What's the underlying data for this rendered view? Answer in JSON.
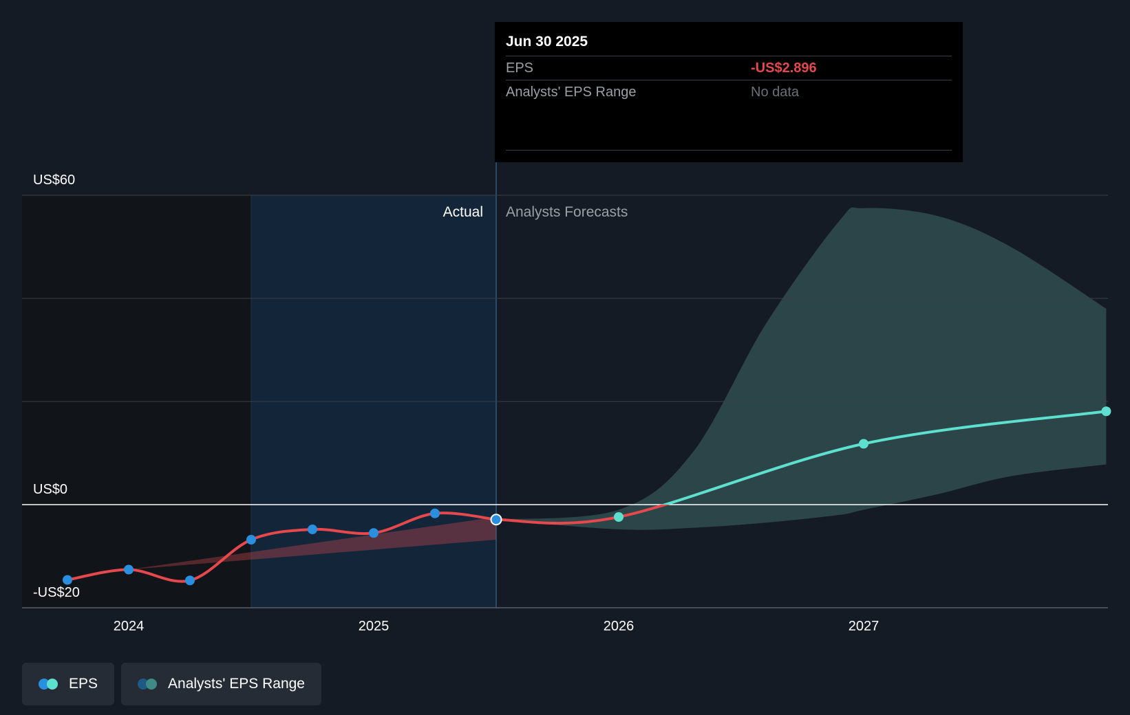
{
  "chart_data": {
    "type": "line",
    "title": "EPS",
    "y_unit_labels": [
      "US$60",
      "US$0",
      "-US$20"
    ],
    "ylim": [
      -20,
      60
    ],
    "xlim": [
      2023.6,
      2027.99
    ],
    "x_ticks": [
      {
        "value": 2024.0,
        "label": "2024"
      },
      {
        "value": 2025.0,
        "label": "2025"
      },
      {
        "value": 2026.0,
        "label": "2026"
      },
      {
        "value": 2027.0,
        "label": "2027"
      }
    ],
    "actual_label": "Actual",
    "forecast_label": "Analysts Forecasts",
    "actual_region_start": 2024.5,
    "forecast_start": 2025.5,
    "series": [
      {
        "name": "EPS (actual)",
        "color": "#e5484d",
        "marker_color": "#2b8fe0",
        "points": [
          {
            "x": 2023.75,
            "y": -14.6
          },
          {
            "x": 2024.0,
            "y": -12.6
          },
          {
            "x": 2024.25,
            "y": -14.7
          },
          {
            "x": 2024.5,
            "y": -6.8
          },
          {
            "x": 2024.75,
            "y": -4.8
          },
          {
            "x": 2025.0,
            "y": -5.5
          },
          {
            "x": 2025.25,
            "y": -1.7
          },
          {
            "x": 2025.5,
            "y": -2.896
          }
        ]
      },
      {
        "name": "EPS (forecast)",
        "color": "#5ee0cf",
        "marker_color": "#5ee0cf",
        "points": [
          {
            "x": 2025.5,
            "y": -2.896
          },
          {
            "x": 2026.0,
            "y": -2.4
          },
          {
            "x": 2027.0,
            "y": 11.8
          },
          {
            "x": 2027.99,
            "y": 18.1
          }
        ]
      }
    ],
    "actual_range_band": {
      "x": [
        2024.0,
        2025.5
      ],
      "low": [
        -12.6,
        -6.8
      ],
      "high": [
        -12.6,
        -2.4
      ]
    },
    "forecast_range_band": {
      "x": [
        2025.5,
        2026.0,
        2026.3,
        2026.6,
        2026.9,
        2027.0,
        2027.3,
        2027.6,
        2027.99
      ],
      "high": [
        -2.9,
        -1.0,
        10.0,
        35.0,
        55.0,
        57.5,
        56.0,
        50.0,
        38.0
      ],
      "low": [
        -2.9,
        -4.8,
        -4.5,
        -3.5,
        -2.0,
        -1.0,
        2.0,
        5.5,
        7.8
      ]
    }
  },
  "tooltip": {
    "date": "Jun 30 2025",
    "eps_label": "EPS",
    "eps_value": "-US$2.896",
    "range_label": "Analysts' EPS Range",
    "range_value": "No data"
  },
  "legend": {
    "eps_label": "EPS",
    "range_label": "Analysts' EPS Range"
  },
  "colors": {
    "background": "#151b24",
    "actual_highlight": "#13263a",
    "negative": "#e5484d",
    "forecast": "#5ee0cf",
    "forecast_band": "#2d4a4c",
    "actual_marker": "#2b8fe0"
  }
}
